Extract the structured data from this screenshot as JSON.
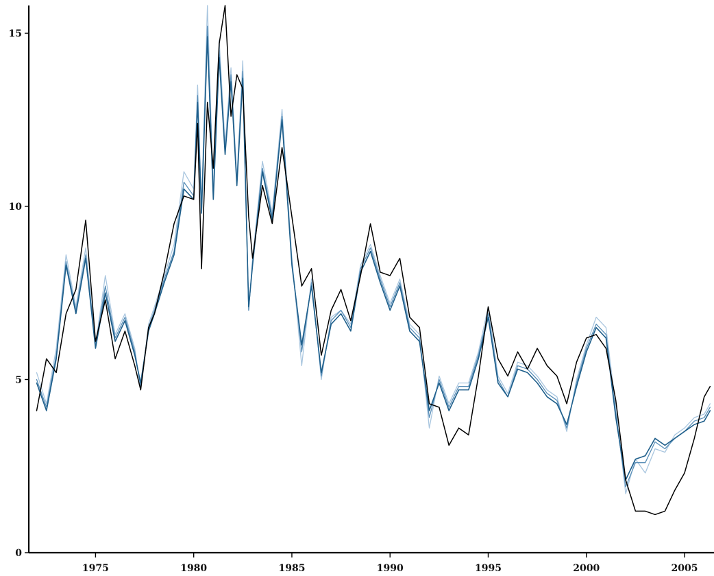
{
  "chart_data": {
    "type": "line",
    "title": "",
    "xlabel": "",
    "ylabel": "",
    "xlim": [
      1971.6,
      2006.5
    ],
    "ylim": [
      0,
      15.8
    ],
    "x_ticks": [
      1975,
      1980,
      1985,
      1990,
      1995,
      2000,
      2005
    ],
    "y_ticks": [
      0,
      5,
      10,
      15
    ],
    "grid": false,
    "legend": "none",
    "colors": {
      "actual": "#000000",
      "dark": "#1f5f8b",
      "mid": "#5a8fb8",
      "light": "#a9c6df"
    },
    "series": [
      {
        "style": "light",
        "x": [
          1972.0,
          1972.5,
          1973.0,
          1973.5,
          1974.0,
          1974.5,
          1975.0,
          1975.5,
          1976.0,
          1976.5,
          1977.0,
          1977.3,
          1977.7,
          1978.0,
          1978.5,
          1979.0,
          1979.5,
          1980.0,
          1980.2,
          1980.4,
          1980.7,
          1981.0,
          1981.3,
          1981.6,
          1981.9,
          1982.2,
          1982.5,
          1982.8,
          1983.0,
          1983.5,
          1984.0,
          1984.5,
          1985.0,
          1985.5,
          1986.0,
          1986.5,
          1987.0,
          1987.5,
          1988.0,
          1988.5,
          1989.0,
          1989.5,
          1990.0,
          1990.5,
          1991.0,
          1991.5,
          1992.0,
          1992.5,
          1993.0,
          1993.5,
          1994.0,
          1994.5,
          1995.0,
          1995.5,
          1996.0,
          1996.5,
          1997.0,
          1997.5,
          1998.0,
          1998.5,
          1999.0,
          1999.5,
          2000.0,
          2000.5,
          2001.0,
          2001.5,
          2002.0,
          2002.5,
          2003.0,
          2003.5,
          2004.0,
          2004.5,
          2005.0,
          2005.5,
          2006.0,
          2006.3
        ],
        "y": [
          5.2,
          4.3,
          5.9,
          8.6,
          7.1,
          8.8,
          6.0,
          8.0,
          6.3,
          6.9,
          5.9,
          4.7,
          6.6,
          7.1,
          8.0,
          8.9,
          11.0,
          10.5,
          13.5,
          10.0,
          15.8,
          10.5,
          14.8,
          11.8,
          14.0,
          10.8,
          14.2,
          7.0,
          8.5,
          11.3,
          9.8,
          12.8,
          8.5,
          5.4,
          7.9,
          5.0,
          6.8,
          7.0,
          6.6,
          8.3,
          8.9,
          8.0,
          7.2,
          7.9,
          6.6,
          6.3,
          3.6,
          5.1,
          4.3,
          4.9,
          4.9,
          5.8,
          7.1,
          5.1,
          4.6,
          5.5,
          5.4,
          5.1,
          4.7,
          4.5,
          3.5,
          5.0,
          6.0,
          6.8,
          6.5,
          4.2,
          1.7,
          2.7,
          2.3,
          3.0,
          2.9,
          3.4,
          3.6,
          3.9,
          4.0,
          4.3
        ]
      },
      {
        "style": "mid",
        "x": [
          1972.0,
          1972.5,
          1973.0,
          1973.5,
          1974.0,
          1974.5,
          1975.0,
          1975.5,
          1976.0,
          1976.5,
          1977.0,
          1977.3,
          1977.7,
          1978.0,
          1978.5,
          1979.0,
          1979.5,
          1980.0,
          1980.2,
          1980.4,
          1980.7,
          1981.0,
          1981.3,
          1981.6,
          1981.9,
          1982.2,
          1982.5,
          1982.8,
          1983.0,
          1983.5,
          1984.0,
          1984.5,
          1985.0,
          1985.5,
          1986.0,
          1986.5,
          1987.0,
          1987.5,
          1988.0,
          1988.5,
          1989.0,
          1989.5,
          1990.0,
          1990.5,
          1991.0,
          1991.5,
          1992.0,
          1992.5,
          1993.0,
          1993.5,
          1994.0,
          1994.5,
          1995.0,
          1995.5,
          1996.0,
          1996.5,
          1997.0,
          1997.5,
          1998.0,
          1998.5,
          1999.0,
          1999.5,
          2000.0,
          2000.5,
          2001.0,
          2001.5,
          2002.0,
          2002.5,
          2003.0,
          2003.5,
          2004.0,
          2004.5,
          2005.0,
          2005.5,
          2006.0,
          2006.3
        ],
        "y": [
          5.0,
          4.2,
          5.7,
          8.4,
          7.0,
          8.6,
          6.0,
          7.7,
          6.2,
          6.8,
          5.8,
          4.8,
          6.5,
          7.0,
          7.9,
          8.7,
          10.7,
          10.3,
          13.2,
          9.9,
          15.2,
          10.3,
          14.5,
          11.6,
          13.8,
          10.7,
          13.9,
          7.0,
          8.4,
          11.1,
          9.7,
          12.6,
          8.4,
          5.8,
          7.8,
          5.1,
          6.7,
          7.0,
          6.5,
          8.2,
          8.8,
          7.9,
          7.1,
          7.8,
          6.5,
          6.2,
          3.9,
          5.0,
          4.2,
          4.8,
          4.8,
          5.7,
          6.9,
          5.0,
          4.5,
          5.4,
          5.3,
          5.0,
          4.6,
          4.4,
          3.6,
          4.9,
          5.9,
          6.6,
          6.3,
          4.0,
          1.9,
          2.6,
          2.6,
          3.2,
          3.0,
          3.3,
          3.5,
          3.8,
          3.9,
          4.2
        ]
      },
      {
        "style": "dark",
        "x": [
          1972.0,
          1972.5,
          1973.0,
          1973.5,
          1974.0,
          1974.5,
          1975.0,
          1975.5,
          1976.0,
          1976.5,
          1977.0,
          1977.3,
          1977.7,
          1978.0,
          1978.5,
          1979.0,
          1979.5,
          1980.0,
          1980.2,
          1980.4,
          1980.7,
          1981.0,
          1981.3,
          1981.6,
          1981.9,
          1982.2,
          1982.5,
          1982.8,
          1983.0,
          1983.5,
          1984.0,
          1984.5,
          1985.0,
          1985.5,
          1986.0,
          1986.5,
          1987.0,
          1987.5,
          1988.0,
          1988.5,
          1989.0,
          1989.5,
          1990.0,
          1990.5,
          1991.0,
          1991.5,
          1992.0,
          1992.5,
          1993.0,
          1993.5,
          1994.0,
          1994.5,
          1995.0,
          1995.5,
          1996.0,
          1996.5,
          1997.0,
          1997.5,
          1998.0,
          1998.5,
          1999.0,
          1999.5,
          2000.0,
          2000.5,
          2001.0,
          2001.5,
          2002.0,
          2002.5,
          2003.0,
          2003.5,
          2004.0,
          2004.5,
          2005.0,
          2005.5,
          2006.0,
          2006.3
        ],
        "y": [
          4.9,
          4.1,
          5.6,
          8.3,
          6.9,
          8.5,
          5.9,
          7.5,
          6.1,
          6.7,
          5.7,
          4.9,
          6.4,
          6.9,
          7.8,
          8.6,
          10.5,
          10.2,
          13.0,
          9.8,
          14.9,
          10.2,
          14.3,
          11.5,
          13.6,
          10.6,
          13.7,
          7.1,
          8.3,
          11.0,
          9.6,
          12.5,
          8.3,
          6.0,
          7.7,
          5.2,
          6.6,
          6.9,
          6.4,
          8.1,
          8.7,
          7.8,
          7.0,
          7.7,
          6.4,
          6.1,
          4.1,
          4.9,
          4.1,
          4.7,
          4.7,
          5.6,
          6.8,
          4.9,
          4.5,
          5.3,
          5.2,
          4.9,
          4.5,
          4.3,
          3.7,
          4.8,
          5.8,
          6.5,
          6.2,
          3.9,
          2.1,
          2.7,
          2.8,
          3.3,
          3.1,
          3.3,
          3.5,
          3.7,
          3.8,
          4.1
        ]
      },
      {
        "style": "actual",
        "x": [
          1972.0,
          1972.5,
          1973.0,
          1973.5,
          1974.0,
          1974.5,
          1975.0,
          1975.5,
          1976.0,
          1976.5,
          1977.0,
          1977.3,
          1977.7,
          1978.0,
          1978.5,
          1979.0,
          1979.5,
          1980.0,
          1980.2,
          1980.4,
          1980.7,
          1981.0,
          1981.3,
          1981.6,
          1981.9,
          1982.2,
          1982.5,
          1982.8,
          1983.0,
          1983.5,
          1984.0,
          1984.5,
          1985.0,
          1985.5,
          1986.0,
          1986.5,
          1987.0,
          1987.5,
          1988.0,
          1988.5,
          1989.0,
          1989.5,
          1990.0,
          1990.5,
          1991.0,
          1991.5,
          1992.0,
          1992.5,
          1993.0,
          1993.5,
          1994.0,
          1994.5,
          1995.0,
          1995.5,
          1996.0,
          1996.5,
          1997.0,
          1997.5,
          1998.0,
          1998.5,
          1999.0,
          1999.5,
          2000.0,
          2000.5,
          2001.0,
          2001.5,
          2002.0,
          2002.5,
          2003.0,
          2003.5,
          2004.0,
          2004.5,
          2005.0,
          2005.5,
          2006.0,
          2006.3
        ],
        "y": [
          4.1,
          5.6,
          5.2,
          6.9,
          7.6,
          9.6,
          6.1,
          7.3,
          5.6,
          6.4,
          5.4,
          4.7,
          6.5,
          6.9,
          8.1,
          9.5,
          10.3,
          10.2,
          12.4,
          8.2,
          13.0,
          11.1,
          14.7,
          15.8,
          12.6,
          13.8,
          13.4,
          9.7,
          8.5,
          10.6,
          9.5,
          11.7,
          9.7,
          7.7,
          8.2,
          5.7,
          7.0,
          7.6,
          6.7,
          8.0,
          9.5,
          8.1,
          8.0,
          8.5,
          6.8,
          6.5,
          4.3,
          4.2,
          3.1,
          3.6,
          3.4,
          5.1,
          7.1,
          5.6,
          5.1,
          5.8,
          5.3,
          5.9,
          5.4,
          5.1,
          4.3,
          5.5,
          6.2,
          6.3,
          5.9,
          4.4,
          2.1,
          1.2,
          1.2,
          1.1,
          1.2,
          1.8,
          2.3,
          3.3,
          4.5,
          4.8
        ]
      }
    ]
  }
}
